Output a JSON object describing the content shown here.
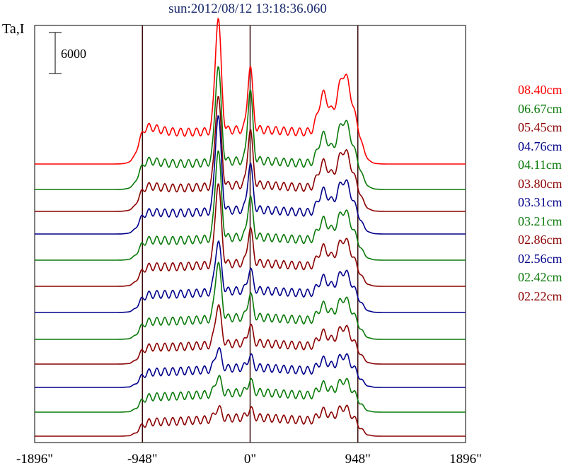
{
  "chart_data": {
    "type": "line",
    "title": "sun:2012/08/12 13:18:36.060",
    "ylabel": "Ta,I",
    "scale_bar_label": "6000",
    "scale_bar_value": 6000,
    "xlim": [
      -1896,
      1896
    ],
    "x_ticks": [
      {
        "value": -1896,
        "label": "-1896\""
      },
      {
        "value": -948,
        "label": "-948\""
      },
      {
        "value": 0,
        "label": "0\""
      },
      {
        "value": 948,
        "label": "948\""
      },
      {
        "value": 1896,
        "label": "1896\""
      }
    ],
    "vertical_lines": [
      -948,
      0,
      948
    ],
    "series": [
      {
        "name": "08.40cm",
        "color": "#ff0000",
        "peaks": [
          1.0,
          0.55,
          0.6
        ],
        "limb": 0.15,
        "plateau": 0.25
      },
      {
        "name": "06.67cm",
        "color": "#0a7a0a",
        "peaks": [
          0.85,
          0.62,
          0.45
        ],
        "limb": 0.1,
        "plateau": 0.2
      },
      {
        "name": "05.45cm",
        "color": "#8b0000",
        "peaks": [
          0.8,
          0.48,
          0.4
        ],
        "limb": 0.08,
        "plateau": 0.18
      },
      {
        "name": "04.76cm",
        "color": "#00008b",
        "peaks": [
          0.85,
          0.4,
          0.35
        ],
        "limb": 0.06,
        "plateau": 0.16
      },
      {
        "name": "04.11cm",
        "color": "#0a7a0a",
        "peaks": [
          0.78,
          0.35,
          0.32
        ],
        "limb": 0.05,
        "plateau": 0.15
      },
      {
        "name": "03.80cm",
        "color": "#8b0000",
        "peaks": [
          0.72,
          0.3,
          0.3
        ],
        "limb": 0.04,
        "plateau": 0.15
      },
      {
        "name": "03.31cm",
        "color": "#00008b",
        "peaks": [
          0.45,
          0.18,
          0.25
        ],
        "limb": 0.03,
        "plateau": 0.14
      },
      {
        "name": "03.21cm",
        "color": "#0a7a0a",
        "peaks": [
          0.5,
          0.2,
          0.25
        ],
        "limb": 0.03,
        "plateau": 0.14
      },
      {
        "name": "02.86cm",
        "color": "#8b0000",
        "peaks": [
          0.35,
          0.15,
          0.22
        ],
        "limb": 0.03,
        "plateau": 0.13
      },
      {
        "name": "02.56cm",
        "color": "#00008b",
        "peaks": [
          0.18,
          0.1,
          0.18
        ],
        "limb": 0.02,
        "plateau": 0.12
      },
      {
        "name": "02.42cm",
        "color": "#0a7a0a",
        "peaks": [
          0.15,
          0.1,
          0.18
        ],
        "limb": 0.02,
        "plateau": 0.12
      },
      {
        "name": "02.22cm",
        "color": "#8b0000",
        "peaks": [
          0.1,
          0.07,
          0.16
        ],
        "limb": 0.02,
        "plateau": 0.11
      }
    ]
  }
}
